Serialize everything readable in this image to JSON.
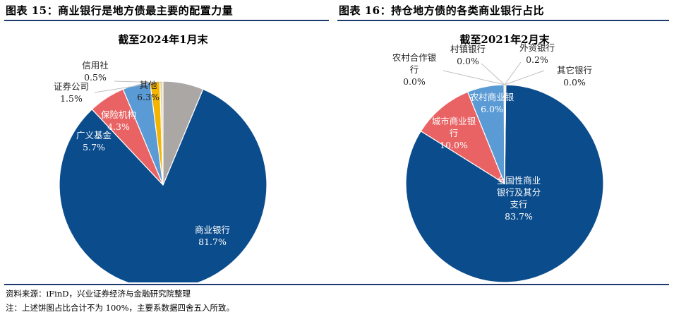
{
  "figures": {
    "left_title": "图表 15：商业银行是地方债最主要的配置力量",
    "right_title": "图表 16：持仓地方债的各类商业银行占比"
  },
  "notes": {
    "source": "资料来源：iFinD，兴业证券经济与金融研究院整理",
    "footnote": "注：上述饼图占比合计不为 100%，主要系数据四舍五入所致。"
  },
  "chart_data": [
    {
      "type": "pie",
      "title": "截至2024年1月末",
      "slices": [
        {
          "label": "商业银行",
          "value": 81.7,
          "value_label": "81.7%",
          "color": "#0b4c8c"
        },
        {
          "label": "广义基金",
          "value": 5.7,
          "value_label": "5.7%",
          "color": "#e96364"
        },
        {
          "label": "保险机构",
          "value": 4.3,
          "value_label": "4.3%",
          "color": "#5b9bd5"
        },
        {
          "label": "证券公司",
          "value": 1.5,
          "value_label": "1.5%",
          "color": "#f4b400"
        },
        {
          "label": "信用社",
          "value": 0.5,
          "value_label": "0.5%",
          "color": "#e8d9a8"
        },
        {
          "label": "其他",
          "value": 6.3,
          "value_label": "6.3%",
          "color": "#aba7a4"
        }
      ]
    },
    {
      "type": "pie",
      "title": "截至2021年2月末",
      "slices": [
        {
          "label": "全国性商业银行及其分支行",
          "value": 83.7,
          "value_label": "83.7%",
          "color": "#0b4c8c"
        },
        {
          "label": "城市商业银行",
          "value": 10.0,
          "value_label": "10.0%",
          "color": "#e96364"
        },
        {
          "label": "农村商业银行",
          "value": 6.0,
          "value_label": "6.0%",
          "color": "#5b9bd5"
        },
        {
          "label": "农村合作银行",
          "value": 0.0,
          "value_label": "0.0%",
          "color": "#f4b400"
        },
        {
          "label": "村镇银行",
          "value": 0.0,
          "value_label": "0.0%",
          "color": "#aba7a4"
        },
        {
          "label": "外资银行",
          "value": 0.2,
          "value_label": "0.2%",
          "color": "#e8c84a"
        },
        {
          "label": "其它银行",
          "value": 0.0,
          "value_label": "0.0%",
          "color": "#d9d9d9"
        }
      ]
    }
  ]
}
